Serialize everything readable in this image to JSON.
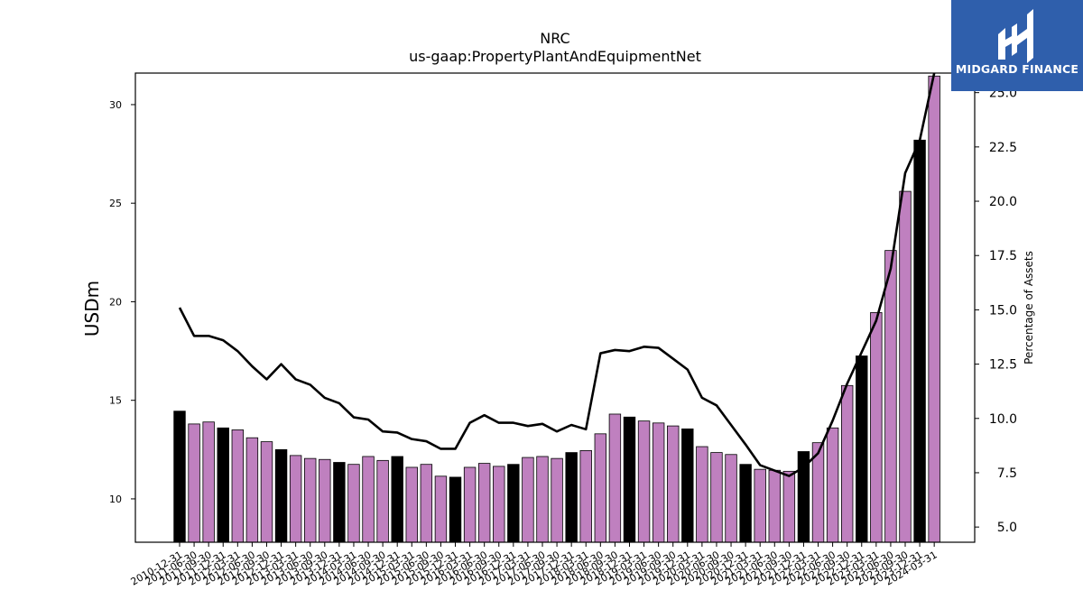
{
  "chart_data": {
    "type": "bar",
    "title": "NRC",
    "subtitle": "us-gaap:PropertyPlantAndEquipmentNet",
    "ylabel": "USDm",
    "y2label": "Percentage of Assets",
    "ylim": [
      7.8,
      31.6
    ],
    "y2lim": [
      4.3,
      25.9
    ],
    "yticks": [
      "10",
      "15",
      "20",
      "25",
      "30"
    ],
    "y2ticks": [
      "5.0",
      "7.5",
      "10.0",
      "12.5",
      "15.0",
      "17.5",
      "20.0",
      "22.5",
      "25.0"
    ],
    "categories": [
      "2010-12-31",
      "2011-06-30",
      "2011-09-30",
      "2011-12-31",
      "2012-03-31",
      "2012-06-30",
      "2012-09-30",
      "2012-12-31",
      "2013-03-31",
      "2013-06-30",
      "2013-09-30",
      "2013-12-31",
      "2014-03-31",
      "2014-06-30",
      "2014-09-30",
      "2014-12-31",
      "2015-03-31",
      "2015-06-30",
      "2015-09-30",
      "2015-12-31",
      "2016-03-31",
      "2016-06-30",
      "2016-09-30",
      "2016-12-31",
      "2017-03-31",
      "2017-06-30",
      "2017-09-30",
      "2017-12-31",
      "2018-03-31",
      "2018-06-30",
      "2018-09-30",
      "2018-12-31",
      "2019-03-31",
      "2019-06-30",
      "2019-09-30",
      "2019-12-31",
      "2020-03-31",
      "2020-06-30",
      "2020-09-30",
      "2020-12-31",
      "2021-03-31",
      "2021-06-30",
      "2021-09-30",
      "2021-12-31",
      "2022-03-31",
      "2022-06-30",
      "2022-09-30",
      "2022-12-31",
      "2023-03-31",
      "2023-06-30",
      "2023-09-30",
      "2023-12-31",
      "2024-03-31"
    ],
    "series": [
      {
        "kind": "bar",
        "values": [
          14.45,
          13.8,
          13.9,
          13.6,
          13.5,
          13.1,
          12.9,
          12.5,
          12.2,
          12.05,
          12.0,
          11.85,
          11.75,
          12.15,
          11.95,
          12.15,
          11.6,
          11.75,
          11.15,
          11.1,
          11.6,
          11.8,
          11.65,
          11.75,
          12.1,
          12.15,
          12.05,
          12.35,
          12.45,
          13.3,
          14.3,
          14.15,
          13.95,
          13.85,
          13.7,
          13.55,
          12.65,
          12.35,
          12.25,
          11.75,
          11.5,
          11.45,
          11.4,
          12.4,
          12.85,
          13.6,
          15.75,
          17.25,
          19.45,
          22.6,
          25.6,
          28.2,
          31.45
        ],
        "colors_note": "year-end bars black, others purple"
      },
      {
        "kind": "line",
        "axis": "right",
        "values": [
          15.1,
          13.8,
          13.8,
          13.6,
          13.1,
          12.4,
          11.8,
          12.5,
          11.8,
          11.55,
          10.95,
          10.7,
          10.05,
          9.95,
          9.4,
          9.35,
          9.05,
          8.95,
          8.6,
          8.6,
          9.8,
          10.15,
          9.8,
          9.8,
          9.65,
          9.75,
          9.4,
          9.7,
          9.5,
          13.0,
          13.15,
          13.1,
          13.3,
          13.25,
          12.75,
          12.25,
          10.95,
          10.6,
          9.7,
          8.8,
          7.85,
          7.6,
          7.35,
          7.75,
          8.4,
          9.9,
          11.6,
          13.05,
          14.5,
          16.9,
          21.3,
          22.8,
          25.9
        ]
      }
    ],
    "colors": {
      "bar_quarter": "#bf80bf",
      "bar_year_end": "#000000",
      "line": "#000000",
      "logo_bg": "#2f5fac"
    },
    "grid": false,
    "legend": "none"
  },
  "logo": {
    "text": "MIDGARD FINANCE"
  }
}
